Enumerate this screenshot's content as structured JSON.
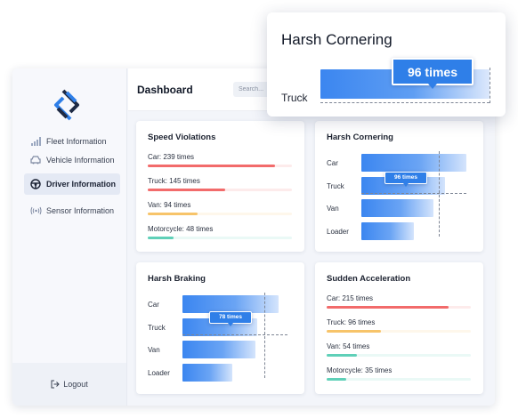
{
  "sidebar": {
    "items": [
      {
        "label": "Fleet Information",
        "icon": "signal-bars-icon"
      },
      {
        "label": "Vehicle Information",
        "icon": "car-icon"
      },
      {
        "label": "Driver Information",
        "icon": "steering-wheel-icon"
      },
      {
        "label": "Sensor Information",
        "icon": "sensor-waves-icon"
      }
    ],
    "active_index": 2,
    "logout_label": "Logout"
  },
  "header": {
    "title": "Dashboard",
    "search_placeholder": "Search..."
  },
  "cards": {
    "speed": {
      "title": "Speed Violations",
      "rows": [
        {
          "label": "Car: 239 times",
          "value": 239,
          "color": "#f26b6b"
        },
        {
          "label": "Truck: 145 times",
          "value": 145,
          "color": "#f26b6b"
        },
        {
          "label": "Van: 94 times",
          "value": 94,
          "color": "#f7c46a"
        },
        {
          "label": "Motorcycle: 48 times",
          "value": 48,
          "color": "#5fd0b8"
        }
      ]
    },
    "cornering": {
      "title": "Harsh Cornering",
      "bars": [
        {
          "label": "Car",
          "value": 120
        },
        {
          "label": "Truck",
          "value": 96
        },
        {
          "label": "Van",
          "value": 82
        },
        {
          "label": "Loader",
          "value": 60
        }
      ],
      "tooltip": "96 times"
    },
    "braking": {
      "title": "Harsh Braking",
      "bars": [
        {
          "label": "Car",
          "value": 100
        },
        {
          "label": "Truck",
          "value": 78
        },
        {
          "label": "Van",
          "value": 76
        },
        {
          "label": "Loader",
          "value": 52
        }
      ],
      "tooltip": "78 times"
    },
    "acceleration": {
      "title": "Sudden Acceleration",
      "rows": [
        {
          "label": "Car: 215 times",
          "value": 215,
          "color": "#f26b6b"
        },
        {
          "label": "Truck: 96 times",
          "value": 96,
          "color": "#f7c46a"
        },
        {
          "label": "Van: 54 times",
          "value": 54,
          "color": "#5fd0b8"
        },
        {
          "label": "Motorcycle: 35 times",
          "value": 35,
          "color": "#5fd0b8"
        }
      ]
    }
  },
  "zoom": {
    "title": "Harsh Cornering",
    "label": "Truck",
    "tooltip": "96 times"
  },
  "colors": {
    "accent": "#2f7fe8",
    "red": "#f26b6b",
    "yellow": "#f7c46a",
    "teal": "#5fd0b8"
  }
}
